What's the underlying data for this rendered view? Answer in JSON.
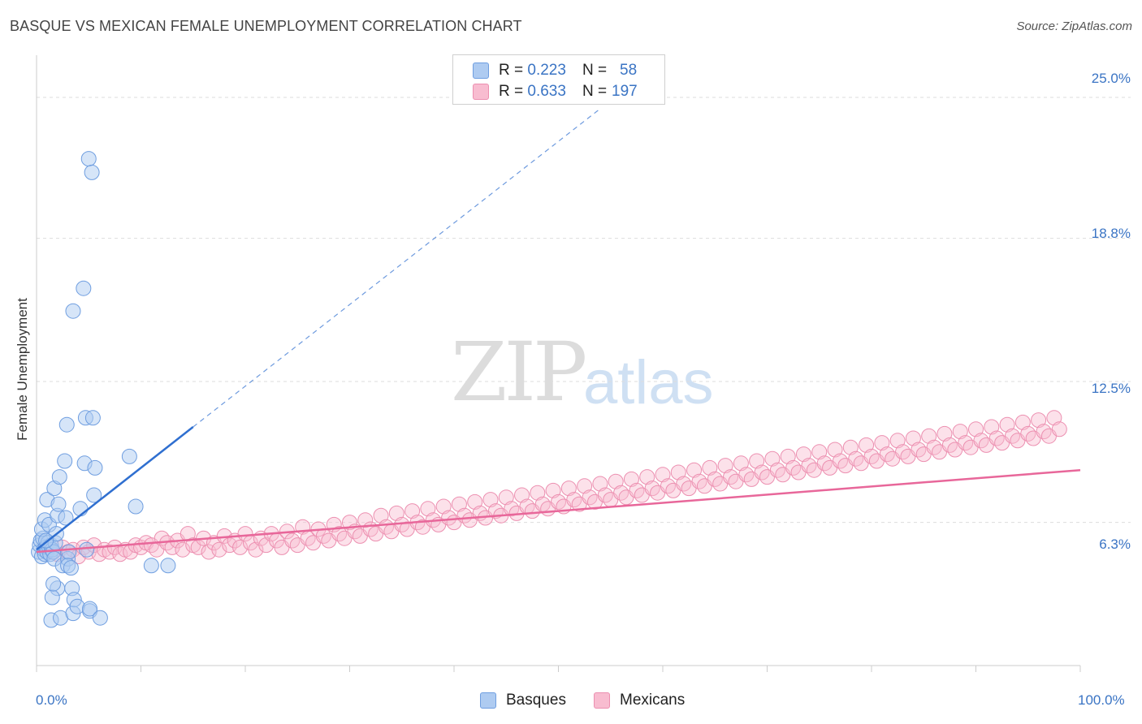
{
  "title": "BASQUE VS MEXICAN FEMALE UNEMPLOYMENT CORRELATION CHART",
  "source": "Source: ZipAtlas.com",
  "watermark": {
    "zip": "ZIP",
    "atlas": "atlas"
  },
  "legend_top": [
    {
      "r_label": "R =",
      "r_value": "0.223",
      "n_label": "N =",
      "n_value": "58",
      "color": "#aecbf1"
    },
    {
      "r_label": "R =",
      "r_value": "0.633",
      "n_label": "N =",
      "n_value": "197",
      "color": "#f8bcd0"
    }
  ],
  "legend_bottom": [
    {
      "label": "Basques",
      "color": "#aecbf1"
    },
    {
      "label": "Mexicans",
      "color": "#f8bcd0"
    }
  ],
  "colors": {
    "basque_fill": "#aecbf1",
    "basque_stroke": "#6f9ee0",
    "basque_line": "#2f6fd0",
    "mexican_fill": "#f8bcd0",
    "mexican_stroke": "#ec8fb0",
    "mexican_line": "#e8679a",
    "tick_text": "#3a74c4",
    "grid": "#dddddd"
  },
  "chart_data": {
    "type": "scatter",
    "title": "BASQUE VS MEXICAN FEMALE UNEMPLOYMENT CORRELATION CHART",
    "xlabel": "",
    "ylabel": "Female Unemployment",
    "xlim": [
      0,
      100
    ],
    "ylim": [
      0,
      26.5
    ],
    "x_tick_labels": [
      "0.0%",
      "100.0%"
    ],
    "y_ticks": [
      6.3,
      12.5,
      18.8,
      25.0
    ],
    "y_tick_labels": [
      "6.3%",
      "12.5%",
      "18.8%",
      "25.0%"
    ],
    "grid": true,
    "series": [
      {
        "name": "Basques",
        "points": [
          [
            0.2,
            5.0
          ],
          [
            0.3,
            5.3
          ],
          [
            0.4,
            5.5
          ],
          [
            0.5,
            4.8
          ],
          [
            0.6,
            5.6
          ],
          [
            0.7,
            5.1
          ],
          [
            0.8,
            4.9
          ],
          [
            0.9,
            5.2
          ],
          [
            1.0,
            5.0
          ],
          [
            1.1,
            5.4
          ],
          [
            1.2,
            5.2
          ],
          [
            1.3,
            4.9
          ],
          [
            1.4,
            5.3
          ],
          [
            1.5,
            5.1
          ],
          [
            1.6,
            5.0
          ],
          [
            1.7,
            4.7
          ],
          [
            0.5,
            6.0
          ],
          [
            0.8,
            6.4
          ],
          [
            1.0,
            7.3
          ],
          [
            1.2,
            6.2
          ],
          [
            1.8,
            5.4
          ],
          [
            1.9,
            5.8
          ],
          [
            2.0,
            6.6
          ],
          [
            1.7,
            7.8
          ],
          [
            2.1,
            7.1
          ],
          [
            2.2,
            8.3
          ],
          [
            2.5,
            4.4
          ],
          [
            2.8,
            6.5
          ],
          [
            2.9,
            10.6
          ],
          [
            3.0,
            4.7
          ],
          [
            2.7,
            9.0
          ],
          [
            3.1,
            5.0
          ],
          [
            3.0,
            4.4
          ],
          [
            3.3,
            4.3
          ],
          [
            2.0,
            3.4
          ],
          [
            1.5,
            3.0
          ],
          [
            1.4,
            2.0
          ],
          [
            1.6,
            3.6
          ],
          [
            2.3,
            2.1
          ],
          [
            3.4,
            3.4
          ],
          [
            3.5,
            2.3
          ],
          [
            3.6,
            2.9
          ],
          [
            3.9,
            2.6
          ],
          [
            4.2,
            6.9
          ],
          [
            4.6,
            8.9
          ],
          [
            4.7,
            10.9
          ],
          [
            4.8,
            5.1
          ],
          [
            5.1,
            2.4
          ],
          [
            5.1,
            2.5
          ],
          [
            5.4,
            10.9
          ],
          [
            5.6,
            8.7
          ],
          [
            6.1,
            2.1
          ],
          [
            5.5,
            7.5
          ],
          [
            5.0,
            22.3
          ],
          [
            3.5,
            15.6
          ],
          [
            4.5,
            16.6
          ],
          [
            8.9,
            9.2
          ],
          [
            9.5,
            7.0
          ],
          [
            11.0,
            4.4
          ],
          [
            12.6,
            4.4
          ],
          [
            5.3,
            21.7
          ],
          [
            0.9,
            5.5
          ]
        ],
        "trend": {
          "x": [
            0,
            15
          ],
          "y": [
            5.1,
            10.5
          ],
          "dashed_extension": {
            "x": [
              15,
              54
            ],
            "y": [
              10.5,
              24.5
            ]
          }
        }
      },
      {
        "name": "Mexicans",
        "points": [
          [
            1.0,
            5.1
          ],
          [
            1.5,
            5.0
          ],
          [
            2.0,
            4.9
          ],
          [
            2.5,
            5.2
          ],
          [
            3.0,
            5.0
          ],
          [
            3.5,
            5.1
          ],
          [
            4.0,
            4.8
          ],
          [
            4.5,
            5.2
          ],
          [
            5.0,
            5.0
          ],
          [
            5.5,
            5.3
          ],
          [
            6.0,
            4.9
          ],
          [
            6.5,
            5.1
          ],
          [
            7.0,
            5.0
          ],
          [
            7.5,
            5.2
          ],
          [
            8.0,
            4.9
          ],
          [
            8.5,
            5.1
          ],
          [
            9.0,
            5.0
          ],
          [
            9.5,
            5.3
          ],
          [
            10.0,
            5.2
          ],
          [
            10.5,
            5.4
          ],
          [
            11.0,
            5.3
          ],
          [
            11.5,
            5.1
          ],
          [
            12.0,
            5.6
          ],
          [
            12.5,
            5.4
          ],
          [
            13.0,
            5.2
          ],
          [
            13.5,
            5.5
          ],
          [
            14.0,
            5.1
          ],
          [
            14.5,
            5.8
          ],
          [
            15.0,
            5.3
          ],
          [
            15.5,
            5.2
          ],
          [
            16.0,
            5.6
          ],
          [
            16.5,
            5.0
          ],
          [
            17.0,
            5.4
          ],
          [
            17.5,
            5.1
          ],
          [
            18.0,
            5.7
          ],
          [
            18.5,
            5.3
          ],
          [
            19.0,
            5.5
          ],
          [
            19.5,
            5.2
          ],
          [
            20.0,
            5.8
          ],
          [
            20.5,
            5.4
          ],
          [
            21.0,
            5.1
          ],
          [
            21.5,
            5.6
          ],
          [
            22.0,
            5.3
          ],
          [
            22.5,
            5.8
          ],
          [
            23.0,
            5.5
          ],
          [
            23.5,
            5.2
          ],
          [
            24.0,
            5.9
          ],
          [
            24.5,
            5.5
          ],
          [
            25.0,
            5.3
          ],
          [
            25.5,
            6.1
          ],
          [
            26.0,
            5.6
          ],
          [
            26.5,
            5.4
          ],
          [
            27.0,
            6.0
          ],
          [
            27.5,
            5.7
          ],
          [
            28.0,
            5.5
          ],
          [
            28.5,
            6.2
          ],
          [
            29.0,
            5.8
          ],
          [
            29.5,
            5.6
          ],
          [
            30.0,
            6.3
          ],
          [
            30.5,
            5.9
          ],
          [
            31.0,
            5.7
          ],
          [
            31.5,
            6.4
          ],
          [
            32.0,
            6.0
          ],
          [
            32.5,
            5.8
          ],
          [
            33.0,
            6.6
          ],
          [
            33.5,
            6.1
          ],
          [
            34.0,
            5.9
          ],
          [
            34.5,
            6.7
          ],
          [
            35.0,
            6.2
          ],
          [
            35.5,
            6.0
          ],
          [
            36.0,
            6.8
          ],
          [
            36.5,
            6.3
          ],
          [
            37.0,
            6.1
          ],
          [
            37.5,
            6.9
          ],
          [
            38.0,
            6.4
          ],
          [
            38.5,
            6.2
          ],
          [
            39.0,
            7.0
          ],
          [
            39.5,
            6.5
          ],
          [
            40.0,
            6.3
          ],
          [
            40.5,
            7.1
          ],
          [
            41.0,
            6.6
          ],
          [
            41.5,
            6.4
          ],
          [
            42.0,
            7.2
          ],
          [
            42.5,
            6.7
          ],
          [
            43.0,
            6.5
          ],
          [
            43.5,
            7.3
          ],
          [
            44.0,
            6.8
          ],
          [
            44.5,
            6.6
          ],
          [
            45.0,
            7.4
          ],
          [
            45.5,
            6.9
          ],
          [
            46.0,
            6.7
          ],
          [
            46.5,
            7.5
          ],
          [
            47.0,
            7.0
          ],
          [
            47.5,
            6.8
          ],
          [
            48.0,
            7.6
          ],
          [
            48.5,
            7.1
          ],
          [
            49.0,
            6.9
          ],
          [
            49.5,
            7.7
          ],
          [
            50.0,
            7.2
          ],
          [
            50.5,
            7.0
          ],
          [
            51.0,
            7.8
          ],
          [
            51.5,
            7.3
          ],
          [
            52.0,
            7.1
          ],
          [
            52.5,
            7.9
          ],
          [
            53.0,
            7.4
          ],
          [
            53.5,
            7.2
          ],
          [
            54.0,
            8.0
          ],
          [
            54.5,
            7.5
          ],
          [
            55.0,
            7.3
          ],
          [
            55.5,
            8.1
          ],
          [
            56.0,
            7.6
          ],
          [
            56.5,
            7.4
          ],
          [
            57.0,
            8.2
          ],
          [
            57.5,
            7.7
          ],
          [
            58.0,
            7.5
          ],
          [
            58.5,
            8.3
          ],
          [
            59.0,
            7.8
          ],
          [
            59.5,
            7.6
          ],
          [
            60.0,
            8.4
          ],
          [
            60.5,
            7.9
          ],
          [
            61.0,
            7.7
          ],
          [
            61.5,
            8.5
          ],
          [
            62.0,
            8.0
          ],
          [
            62.5,
            7.8
          ],
          [
            63.0,
            8.6
          ],
          [
            63.5,
            8.1
          ],
          [
            64.0,
            7.9
          ],
          [
            64.5,
            8.7
          ],
          [
            65.0,
            8.2
          ],
          [
            65.5,
            8.0
          ],
          [
            66.0,
            8.8
          ],
          [
            66.5,
            8.3
          ],
          [
            67.0,
            8.1
          ],
          [
            67.5,
            8.9
          ],
          [
            68.0,
            8.4
          ],
          [
            68.5,
            8.2
          ],
          [
            69.0,
            9.0
          ],
          [
            69.5,
            8.5
          ],
          [
            70.0,
            8.3
          ],
          [
            70.5,
            9.1
          ],
          [
            71.0,
            8.6
          ],
          [
            71.5,
            8.4
          ],
          [
            72.0,
            9.2
          ],
          [
            72.5,
            8.7
          ],
          [
            73.0,
            8.5
          ],
          [
            73.5,
            9.3
          ],
          [
            74.0,
            8.8
          ],
          [
            74.5,
            8.6
          ],
          [
            75.0,
            9.4
          ],
          [
            75.5,
            8.9
          ],
          [
            76.0,
            8.7
          ],
          [
            76.5,
            9.5
          ],
          [
            77.0,
            9.0
          ],
          [
            77.5,
            8.8
          ],
          [
            78.0,
            9.6
          ],
          [
            78.5,
            9.1
          ],
          [
            79.0,
            8.9
          ],
          [
            79.5,
            9.7
          ],
          [
            80.0,
            9.2
          ],
          [
            80.5,
            9.0
          ],
          [
            81.0,
            9.8
          ],
          [
            81.5,
            9.3
          ],
          [
            82.0,
            9.1
          ],
          [
            82.5,
            9.9
          ],
          [
            83.0,
            9.4
          ],
          [
            83.5,
            9.2
          ],
          [
            84.0,
            10.0
          ],
          [
            84.5,
            9.5
          ],
          [
            85.0,
            9.3
          ],
          [
            85.5,
            10.1
          ],
          [
            86.0,
            9.6
          ],
          [
            86.5,
            9.4
          ],
          [
            87.0,
            10.2
          ],
          [
            87.5,
            9.7
          ],
          [
            88.0,
            9.5
          ],
          [
            88.5,
            10.3
          ],
          [
            89.0,
            9.8
          ],
          [
            89.5,
            9.6
          ],
          [
            90.0,
            10.4
          ],
          [
            90.5,
            9.9
          ],
          [
            91.0,
            9.7
          ],
          [
            91.5,
            10.5
          ],
          [
            92.0,
            10.0
          ],
          [
            92.5,
            9.8
          ],
          [
            93.0,
            10.6
          ],
          [
            93.5,
            10.1
          ],
          [
            94.0,
            9.9
          ],
          [
            94.5,
            10.7
          ],
          [
            95.0,
            10.2
          ],
          [
            95.5,
            10.0
          ],
          [
            96.0,
            10.8
          ],
          [
            96.5,
            10.3
          ],
          [
            97.0,
            10.1
          ],
          [
            97.5,
            10.9
          ],
          [
            98.0,
            10.4
          ]
        ],
        "trend": {
          "x": [
            0,
            100
          ],
          "y": [
            5.0,
            8.6
          ]
        }
      }
    ]
  }
}
